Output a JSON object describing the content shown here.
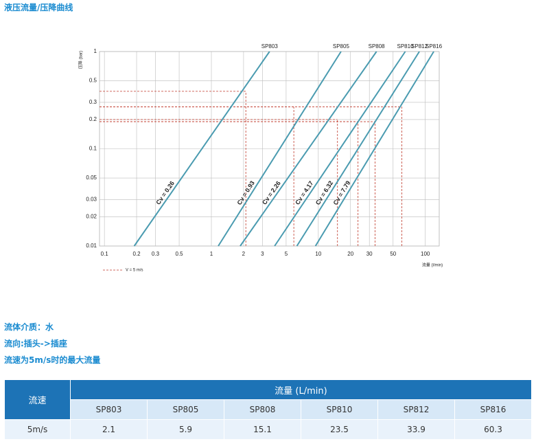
{
  "title": "液压流量/压降曲线",
  "chart_data": {
    "type": "line",
    "xlog": true,
    "ylog": true,
    "xlabel": "流量 (l/min)",
    "ylabel": "压降 (bar)",
    "xlim": [
      0.09,
      135
    ],
    "ylim": [
      0.01,
      1
    ],
    "xticks": [
      0.1,
      0.2,
      0.3,
      0.5,
      1,
      2,
      3,
      5,
      10,
      20,
      30,
      50,
      100
    ],
    "yticks": [
      0.01,
      0.02,
      0.03,
      0.05,
      0.1,
      0.2,
      0.3,
      0.5,
      1
    ],
    "grid": true,
    "series": [
      {
        "name": "SP803",
        "label": "Cv = 0.26",
        "color": "#4a9bb0",
        "x": [
          0.19,
          3.5
        ],
        "values": [
          0.01,
          1
        ]
      },
      {
        "name": "SP805",
        "label": "Cv = 0.93",
        "color": "#4a9bb0",
        "x": [
          1.16,
          16.3
        ],
        "values": [
          0.01,
          1
        ]
      },
      {
        "name": "SP808",
        "label": "Cv = 2.26",
        "color": "#4a9bb0",
        "x": [
          1.86,
          35
        ],
        "values": [
          0.01,
          1
        ]
      },
      {
        "name": "SP810",
        "label": "Cv = 4.17",
        "color": "#4a9bb0",
        "x": [
          3.9,
          65
        ],
        "values": [
          0.01,
          1
        ]
      },
      {
        "name": "SP812",
        "label": "Cv = 6.32",
        "color": "#4a9bb0",
        "x": [
          6.3,
          88
        ],
        "values": [
          0.01,
          1
        ]
      },
      {
        "name": "SP816",
        "label": "Cv = 7.79",
        "color": "#4a9bb0",
        "x": [
          9.4,
          120
        ],
        "values": [
          0.01,
          1
        ]
      }
    ],
    "markers": {
      "name": "V = 5 m/s",
      "color": "#c0392b",
      "x": [
        2.1,
        5.9,
        15.1,
        23.5,
        33.9,
        60.3
      ],
      "values": [
        0.39,
        0.27,
        0.2,
        0.19,
        0.19,
        0.27
      ]
    }
  },
  "notes": [
    "流体介质：水",
    "流向:插头->插座",
    "流速为5m/s时的最大流量"
  ],
  "table": {
    "row_header": "流速",
    "group_header": "流量 (L/min)",
    "columns": [
      "SP803",
      "SP805",
      "SP808",
      "SP810",
      "SP812",
      "SP816"
    ],
    "rows": [
      [
        "5m/s",
        "2.1",
        "5.9",
        "15.1",
        "23.5",
        "33.9",
        "60.3"
      ]
    ]
  }
}
